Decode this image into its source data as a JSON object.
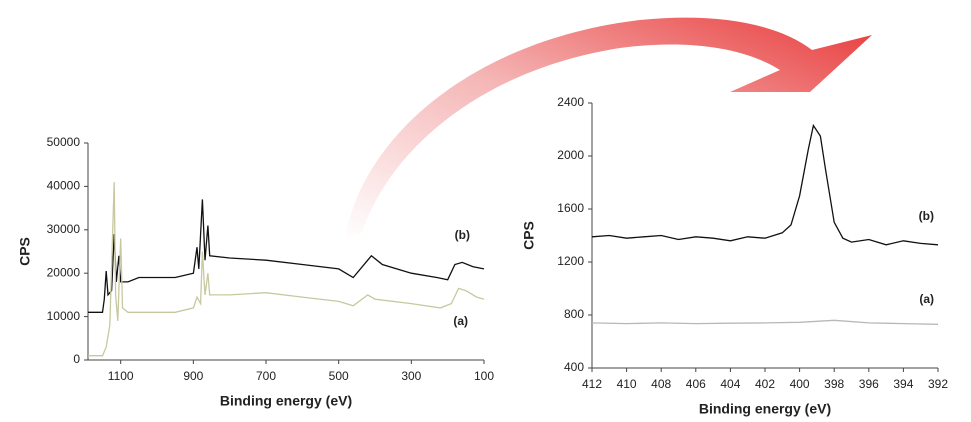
{
  "chart_data": [
    {
      "type": "line",
      "xlabel": "Binding energy (eV)",
      "ylabel": "CPS",
      "xlim": [
        1190,
        100
      ],
      "xticks": [
        1100,
        900,
        700,
        500,
        300,
        100
      ],
      "ylim": [
        0,
        50000
      ],
      "yticks": [
        0,
        10000,
        20000,
        30000,
        40000,
        50000
      ],
      "series": [
        {
          "name": "(b)",
          "color": "#111111",
          "x": [
            1190,
            1150,
            1145,
            1140,
            1135,
            1125,
            1118,
            1112,
            1105,
            1100,
            1080,
            1050,
            1000,
            950,
            900,
            890,
            885,
            875,
            868,
            860,
            855,
            800,
            700,
            600,
            500,
            460,
            420,
            410,
            380,
            300,
            230,
            200,
            180,
            160,
            130,
            100
          ],
          "values": [
            11000,
            11000,
            14000,
            20500,
            15000,
            16000,
            29000,
            18000,
            24000,
            18000,
            18000,
            19000,
            19000,
            19000,
            20000,
            26000,
            21000,
            37000,
            23000,
            31000,
            24000,
            23500,
            23000,
            22000,
            21000,
            19000,
            23000,
            24000,
            22000,
            20000,
            19000,
            18500,
            22000,
            22500,
            21500,
            21000
          ]
        },
        {
          "name": "(a)",
          "color": "#c8c8a0",
          "x": [
            1190,
            1150,
            1140,
            1130,
            1118,
            1114,
            1108,
            1100,
            1095,
            1080,
            1000,
            950,
            900,
            890,
            880,
            875,
            868,
            860,
            855,
            800,
            700,
            600,
            500,
            460,
            420,
            400,
            300,
            220,
            190,
            170,
            150,
            120,
            100
          ],
          "values": [
            1000,
            1000,
            3000,
            8000,
            41000,
            15000,
            9000,
            28000,
            12000,
            11000,
            11000,
            11000,
            12000,
            14500,
            13000,
            25000,
            15000,
            20000,
            15000,
            15000,
            15500,
            14500,
            13500,
            12500,
            15000,
            14000,
            13000,
            12000,
            13000,
            16500,
            16000,
            14500,
            14000
          ]
        }
      ]
    },
    {
      "type": "line",
      "xlabel": "Binding energy (eV)",
      "ylabel": "CPS",
      "xlim": [
        412,
        392
      ],
      "xticks": [
        412,
        410,
        408,
        406,
        404,
        402,
        400,
        398,
        396,
        394,
        392
      ],
      "ylim": [
        400,
        2400
      ],
      "yticks": [
        400,
        800,
        1200,
        1600,
        2000,
        2400
      ],
      "series": [
        {
          "name": "(b)",
          "color": "#111111",
          "x": [
            412,
            411,
            410,
            409,
            408,
            407,
            406,
            405,
            404,
            403,
            402,
            401,
            400.5,
            400,
            399.5,
            399.2,
            398.8,
            398.5,
            398,
            397.5,
            397,
            396,
            395,
            394,
            393,
            392
          ],
          "values": [
            1390,
            1400,
            1380,
            1390,
            1400,
            1370,
            1390,
            1380,
            1360,
            1390,
            1380,
            1420,
            1480,
            1700,
            2050,
            2230,
            2150,
            1900,
            1500,
            1380,
            1350,
            1370,
            1330,
            1360,
            1340,
            1330
          ]
        },
        {
          "name": "(a)",
          "color": "#b8b8b8",
          "x": [
            412,
            410,
            408,
            406,
            404,
            402,
            400,
            398,
            396,
            394,
            392
          ],
          "values": [
            740,
            735,
            740,
            735,
            738,
            740,
            745,
            760,
            740,
            735,
            730
          ]
        }
      ]
    }
  ]
}
